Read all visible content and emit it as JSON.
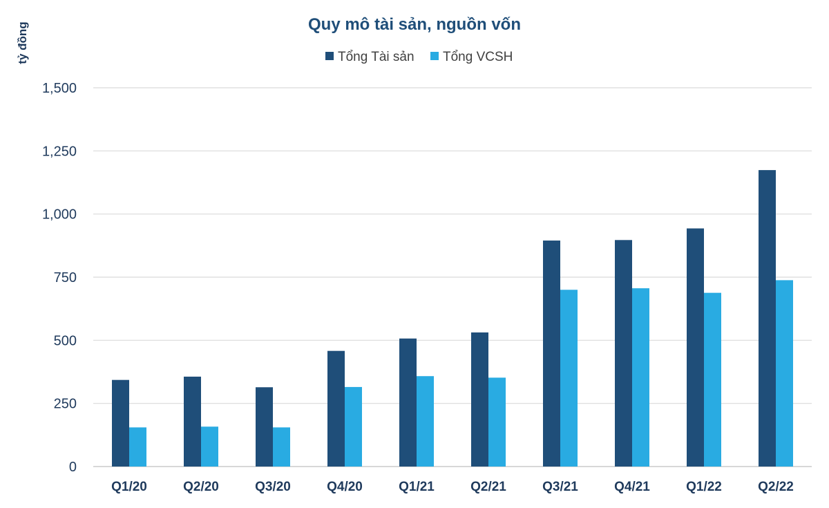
{
  "chart_data": {
    "type": "bar",
    "title": "Quy mô tài sản, nguồn vốn",
    "ylabel": "tỷ đồng",
    "xlabel": "",
    "categories": [
      "Q1/20",
      "Q2/20",
      "Q3/20",
      "Q4/20",
      "Q1/21",
      "Q2/21",
      "Q3/21",
      "Q4/21",
      "Q1/22",
      "Q2/22"
    ],
    "series": [
      {
        "name": "Tổng Tài sản",
        "color": "#1f4e79",
        "values": [
          343,
          356,
          314,
          458,
          507,
          531,
          895,
          897,
          943,
          1174
        ]
      },
      {
        "name": "Tổng VCSH",
        "color": "#29abe2",
        "values": [
          155,
          158,
          155,
          315,
          358,
          352,
          700,
          706,
          688,
          738
        ]
      }
    ],
    "ylim": [
      0,
      1500
    ],
    "yticks": [
      0,
      250,
      500,
      750,
      1000,
      1250,
      1500
    ],
    "ytick_labels": [
      "0",
      "250",
      "500",
      "750",
      "1,000",
      "1,250",
      "1,500"
    ],
    "grid": true,
    "legend_position": "top-center"
  }
}
